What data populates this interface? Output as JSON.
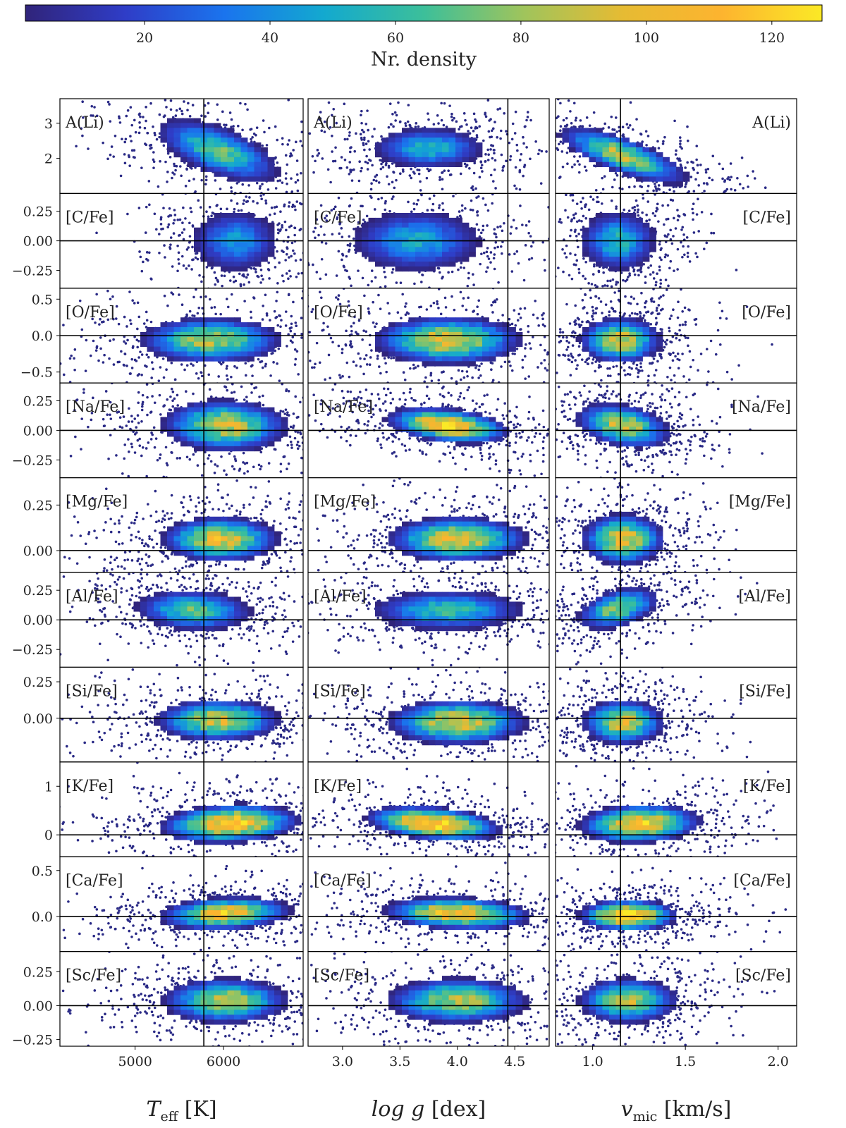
{
  "colorbar": {
    "label": "Nr. density",
    "min": 1,
    "max": 128,
    "ticks": [
      20,
      40,
      60,
      80,
      100,
      120
    ],
    "colormap": [
      "#30247a",
      "#2f3dc7",
      "#1a74ee",
      "#13a9cf",
      "#3cbf9a",
      "#9fc45c",
      "#e6bb33",
      "#fdb42f",
      "#fbe926"
    ]
  },
  "chart_data": {
    "type": "heatmap",
    "description_of_layout": "10 abundance rows x 3 stellar-parameter columns, 2D density histograms",
    "columns": [
      {
        "id": "teff",
        "label_main": "T",
        "label_sub": "eff",
        "label_unit": " [K]",
        "xlim": [
          4150,
          6900
        ],
        "ticks": [
          5000,
          6000
        ],
        "tick_labels": [
          "5000",
          "6000"
        ],
        "vline": 5777
      },
      {
        "id": "logg",
        "label_main": "log g",
        "label_sub": "",
        "label_unit": " [dex]",
        "xlim": [
          2.7,
          4.8
        ],
        "ticks": [
          3.0,
          3.5,
          4.0,
          4.5
        ],
        "tick_labels": [
          "3.0",
          "3.5",
          "4.0",
          "4.5"
        ],
        "vline": 4.44
      },
      {
        "id": "vmic",
        "label_main": "v",
        "label_sub": "mic",
        "label_unit": " [km/s]",
        "xlim": [
          0.8,
          2.1
        ],
        "ticks": [
          1.0,
          1.5,
          2.0
        ],
        "tick_labels": [
          "1.0",
          "1.5",
          "2.0"
        ],
        "vline": 1.15
      }
    ],
    "rows": [
      {
        "label": "A(Li)",
        "ylim": [
          1.0,
          3.7
        ],
        "ticks": [
          2,
          3
        ],
        "tick_labels": [
          "2",
          "3"
        ],
        "hline": null,
        "clouds": [
          {
            "cx": 0.65,
            "cy": 0.55,
            "sx": 0.1,
            "sy": 0.22,
            "rot": -0.55,
            "peak": 0.55
          },
          {
            "cx": 0.5,
            "cy": 0.52,
            "sx": 0.13,
            "sy": 0.12,
            "rot": 0,
            "peak": 0.45
          },
          {
            "cx": 0.28,
            "cy": 0.6,
            "sx": 0.08,
            "sy": 0.22,
            "rot": -0.7,
            "peak": 0.7
          }
        ]
      },
      {
        "label": "[C/Fe]",
        "ylim": [
          -0.4,
          0.4
        ],
        "ticks": [
          -0.25,
          0.0,
          0.25
        ],
        "tick_labels": [
          "−0.25",
          "0.00",
          "0.25"
        ],
        "hline": 0,
        "clouds": [
          {
            "cx": 0.72,
            "cy": 0.5,
            "sx": 0.1,
            "sy": 0.18,
            "rot": 0,
            "peak": 0.35
          },
          {
            "cx": 0.45,
            "cy": 0.5,
            "sx": 0.15,
            "sy": 0.18,
            "rot": 0,
            "peak": 0.4
          },
          {
            "cx": 0.26,
            "cy": 0.5,
            "sx": 0.09,
            "sy": 0.18,
            "rot": 0,
            "peak": 0.45
          }
        ]
      },
      {
        "label": "[O/Fe]",
        "ylim": [
          -0.65,
          0.65
        ],
        "ticks": [
          -0.5,
          0.0,
          0.5
        ],
        "tick_labels": [
          "−0.5",
          "0.0",
          "0.5"
        ],
        "hline": 0,
        "clouds": [
          {
            "cx": 0.62,
            "cy": 0.55,
            "sx": 0.17,
            "sy": 0.14,
            "rot": 0,
            "peak": 0.7
          },
          {
            "cx": 0.58,
            "cy": 0.55,
            "sx": 0.18,
            "sy": 0.15,
            "rot": 0,
            "peak": 0.78
          },
          {
            "cx": 0.27,
            "cy": 0.55,
            "sx": 0.1,
            "sy": 0.14,
            "rot": 0,
            "peak": 0.75
          }
        ]
      },
      {
        "label": "[Na/Fe]",
        "ylim": [
          -0.4,
          0.4
        ],
        "ticks": [
          -0.25,
          0.0,
          0.25
        ],
        "tick_labels": [
          "−0.25",
          "0.00",
          "0.25"
        ],
        "hline": 0,
        "clouds": [
          {
            "cx": 0.68,
            "cy": 0.45,
            "sx": 0.15,
            "sy": 0.16,
            "rot": -0.3,
            "peak": 0.75
          },
          {
            "cx": 0.58,
            "cy": 0.45,
            "sx": 0.16,
            "sy": 0.1,
            "rot": 0.45,
            "peak": 0.95
          },
          {
            "cx": 0.28,
            "cy": 0.45,
            "sx": 0.1,
            "sy": 0.15,
            "rot": -0.5,
            "peak": 0.75
          }
        ]
      },
      {
        "label": "[Mg/Fe]",
        "ylim": [
          -0.12,
          0.4
        ],
        "ticks": [
          0.0,
          0.25
        ],
        "tick_labels": [
          "0.00",
          "0.25"
        ],
        "hline": 0,
        "clouds": [
          {
            "cx": 0.66,
            "cy": 0.65,
            "sx": 0.14,
            "sy": 0.14,
            "rot": 0.35,
            "peak": 0.8
          },
          {
            "cx": 0.62,
            "cy": 0.65,
            "sx": 0.17,
            "sy": 0.14,
            "rot": 0,
            "peak": 0.8
          },
          {
            "cx": 0.28,
            "cy": 0.65,
            "sx": 0.1,
            "sy": 0.16,
            "rot": 0,
            "peak": 0.8
          }
        ]
      },
      {
        "label": "[Al/Fe]",
        "ylim": [
          -0.4,
          0.4
        ],
        "ticks": [
          -0.25,
          0.0,
          0.25
        ],
        "tick_labels": [
          "−0.25",
          "0.00",
          "0.25"
        ],
        "hline": 0,
        "clouds": [
          {
            "cx": 0.55,
            "cy": 0.4,
            "sx": 0.14,
            "sy": 0.12,
            "rot": 0.4,
            "peak": 0.55
          },
          {
            "cx": 0.58,
            "cy": 0.4,
            "sx": 0.18,
            "sy": 0.12,
            "rot": 0,
            "peak": 0.5
          },
          {
            "cx": 0.26,
            "cy": 0.38,
            "sx": 0.08,
            "sy": 0.14,
            "rot": 0.5,
            "peak": 0.65
          }
        ]
      },
      {
        "label": "[Si/Fe]",
        "ylim": [
          -0.3,
          0.35
        ],
        "ticks": [
          0.0,
          0.25
        ],
        "tick_labels": [
          "0.00",
          "0.25"
        ],
        "hline": 0,
        "clouds": [
          {
            "cx": 0.65,
            "cy": 0.56,
            "sx": 0.15,
            "sy": 0.13,
            "rot": 0,
            "peak": 0.75
          },
          {
            "cx": 0.62,
            "cy": 0.58,
            "sx": 0.17,
            "sy": 0.14,
            "rot": 0,
            "peak": 0.8
          },
          {
            "cx": 0.28,
            "cy": 0.58,
            "sx": 0.1,
            "sy": 0.14,
            "rot": 0,
            "peak": 0.75
          }
        ]
      },
      {
        "label": "[K/Fe]",
        "ylim": [
          -0.45,
          1.5
        ],
        "ticks": [
          0,
          1
        ],
        "tick_labels": [
          "0",
          "1"
        ],
        "hline": 0,
        "clouds": [
          {
            "cx": 0.7,
            "cy": 0.65,
            "sx": 0.17,
            "sy": 0.12,
            "rot": -0.25,
            "peak": 0.95
          },
          {
            "cx": 0.52,
            "cy": 0.65,
            "sx": 0.17,
            "sy": 0.1,
            "rot": 0.35,
            "peak": 1.0
          },
          {
            "cx": 0.35,
            "cy": 0.65,
            "sx": 0.15,
            "sy": 0.12,
            "rot": -0.25,
            "peak": 0.9
          }
        ]
      },
      {
        "label": "[Ca/Fe]",
        "ylim": [
          -0.38,
          0.65
        ],
        "ticks": [
          0.0,
          0.5
        ],
        "tick_labels": [
          "0.0",
          "0.5"
        ],
        "hline": 0,
        "clouds": [
          {
            "cx": 0.68,
            "cy": 0.6,
            "sx": 0.16,
            "sy": 0.1,
            "rot": -0.2,
            "peak": 0.85
          },
          {
            "cx": 0.62,
            "cy": 0.6,
            "sx": 0.18,
            "sy": 0.1,
            "rot": 0.15,
            "peak": 0.9
          },
          {
            "cx": 0.3,
            "cy": 0.62,
            "sx": 0.12,
            "sy": 0.1,
            "rot": 0,
            "peak": 1.0
          }
        ]
      },
      {
        "label": "[Sc/Fe]",
        "ylim": [
          -0.3,
          0.4
        ],
        "ticks": [
          -0.25,
          0.0,
          0.25
        ],
        "tick_labels": [
          "−0.25",
          "0.00",
          "0.25"
        ],
        "hline": 0,
        "clouds": [
          {
            "cx": 0.68,
            "cy": 0.52,
            "sx": 0.15,
            "sy": 0.14,
            "rot": 0,
            "peak": 0.7
          },
          {
            "cx": 0.62,
            "cy": 0.52,
            "sx": 0.17,
            "sy": 0.14,
            "rot": 0,
            "peak": 0.7
          },
          {
            "cx": 0.3,
            "cy": 0.52,
            "sx": 0.12,
            "sy": 0.14,
            "rot": 0,
            "peak": 0.7
          }
        ]
      }
    ]
  }
}
